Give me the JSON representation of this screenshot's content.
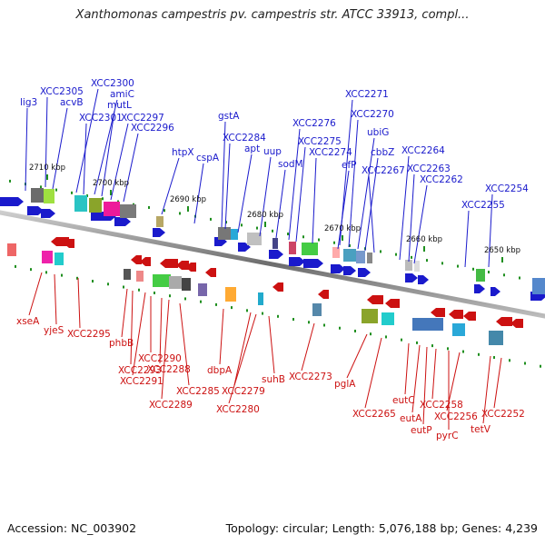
{
  "title": "Xanthomonas campestris pv. campestris str. ATCC 33913, compl...",
  "footer": {
    "accession": "Accession: NC_003902",
    "summary": "Topology: circular; Length: 5,076,188 bp; Genes: 4,239"
  },
  "scale_ticks": [
    "2710 kbp",
    "2700 kbp",
    "2690 kbp",
    "2680 kbp",
    "2670 kbp",
    "2660 kbp",
    "2650 kbp"
  ],
  "forward_genes": [
    "lig3",
    "XCC2305",
    "acvB",
    "XCC2300",
    "amiC",
    "XCC2301",
    "mutL",
    "XCC2297",
    "XCC2296",
    "htpX",
    "cspA",
    "gstA",
    "XCC2284",
    "apt",
    "uup",
    "XCC2276",
    "sodM",
    "XCC2275",
    "XCC2274",
    "XCC2271",
    "XCC2270",
    "efP",
    "ubiG",
    "cbbZ",
    "XCC2267",
    "XCC2264",
    "XCC2263",
    "XCC2262",
    "XCC2255",
    "XCC2254"
  ],
  "reverse_genes": [
    "xseA",
    "yjeS",
    "XCC2295",
    "phbB",
    "XCC2293",
    "XCC2290",
    "XCC2291",
    "XCC2288",
    "XCC2289",
    "XCC2285",
    "dbpA",
    "XCC2279",
    "XCC2280",
    "suhB",
    "XCC2273",
    "pglA",
    "XCC2265",
    "eutC",
    "eutA",
    "eutP",
    "XCC2258",
    "pyrC",
    "XCC2256",
    "tetV",
    "XCC2252"
  ],
  "colors": {
    "forward": "#1a1acc",
    "reverse": "#cc1111",
    "backbone": "#8c8c8c",
    "tick_mark": "#1f8f1f"
  }
}
